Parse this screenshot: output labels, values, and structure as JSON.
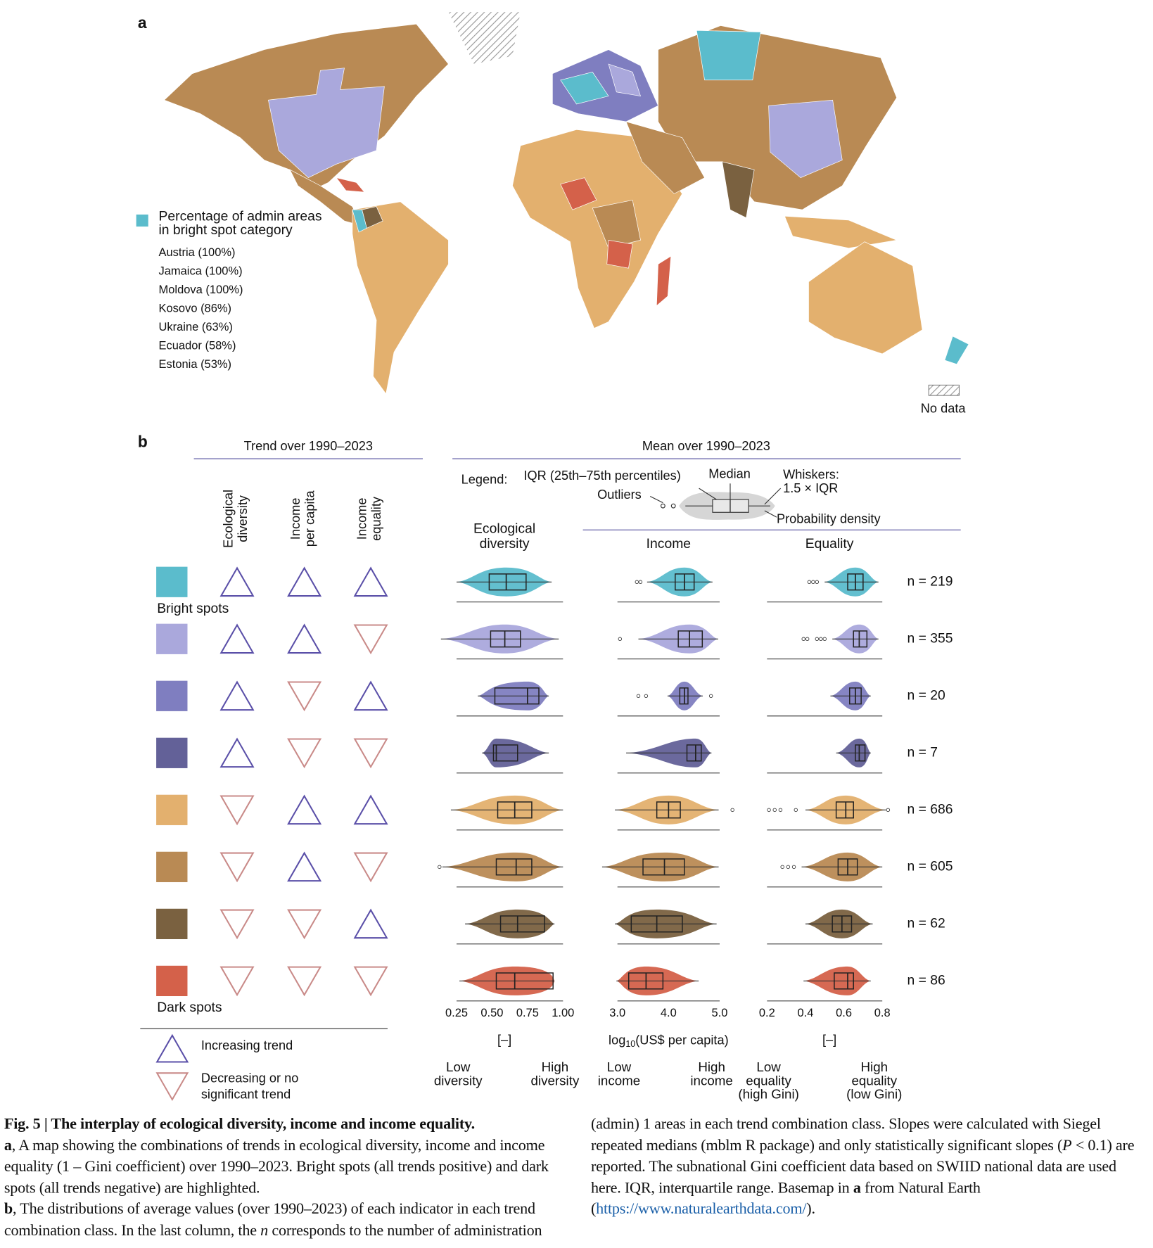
{
  "panel_a": {
    "label": "a",
    "legend_title": [
      "Percentage of admin areas",
      "in bright spot category"
    ],
    "legend_items": [
      "Austria (100%)",
      "Jamaica (100%)",
      "Moldova (100%)",
      "Kosovo (86%)",
      "Ukraine (63%)",
      "Ecuador (58%)",
      "Estonia (53%)"
    ],
    "legend_color": "#5bbccc",
    "no_data": "No data"
  },
  "panel_b": {
    "label": "b",
    "trend_header": "Trend over 1990–2023",
    "mean_header": "Mean over 1990–2023",
    "trend_columns": [
      [
        "Ecological",
        "diversity"
      ],
      [
        "Income",
        "per capita"
      ],
      [
        "Income",
        "equality"
      ]
    ],
    "up_color": "#5a4fa8",
    "down_color": "#c98a88",
    "legend": {
      "title": "Legend:",
      "iqr": "IQR (25th–75th percentiles)",
      "median": "Median",
      "outliers": "Outliers",
      "whiskers": [
        "Whiskers:",
        "1.5 × IQR"
      ],
      "density": "Probability density"
    },
    "trend_legend": {
      "up": "Increasing trend",
      "down": [
        "Decreasing or no",
        "significant trend"
      ]
    },
    "classes": [
      {
        "name": "Bright spots",
        "color": "#5bbccc",
        "trends": [
          "up",
          "up",
          "up"
        ],
        "n": "n = 219"
      },
      {
        "name": null,
        "color": "#aaa8dc",
        "trends": [
          "up",
          "up",
          "down"
        ],
        "n": "n = 355"
      },
      {
        "name": null,
        "color": "#7f7ec0",
        "trends": [
          "up",
          "down",
          "up"
        ],
        "n": "n = 20"
      },
      {
        "name": null,
        "color": "#636198",
        "trends": [
          "up",
          "down",
          "down"
        ],
        "n": "n = 7"
      },
      {
        "name": null,
        "color": "#e3b06e",
        "trends": [
          "down",
          "up",
          "up"
        ],
        "n": "n = 686"
      },
      {
        "name": null,
        "color": "#b98a54",
        "trends": [
          "down",
          "up",
          "down"
        ],
        "n": "n = 605"
      },
      {
        "name": null,
        "color": "#7a6140",
        "trends": [
          "down",
          "down",
          "up"
        ],
        "n": "n = 62"
      },
      {
        "name": "Dark spots",
        "color": "#d4614a",
        "trends": [
          "down",
          "down",
          "down"
        ],
        "n": "n = 86"
      }
    ],
    "charts": [
      {
        "type": "violin",
        "title": [
          "Ecological",
          "diversity"
        ],
        "xlim": [
          0.125,
          1.05
        ],
        "xticks": [
          0.25,
          {
            "value": 0.5,
            "label": "0.50"
          },
          0.75,
          {
            "value": 1.0,
            "label": "1.00"
          }
        ],
        "xlabel": [
          "[–]"
        ],
        "low_label": [
          "Low",
          "diversity"
        ],
        "high_label": [
          "High",
          "diversity"
        ],
        "rows": [
          {
            "whislo": 0.25,
            "q1": 0.48,
            "med": 0.6,
            "q3": 0.74,
            "whishi": 0.92,
            "outliers": []
          },
          {
            "whislo": 0.14,
            "q1": 0.49,
            "med": 0.59,
            "q3": 0.7,
            "whishi": 0.97,
            "outliers": []
          },
          {
            "whislo": 0.4,
            "q1": 0.52,
            "med": 0.75,
            "q3": 0.83,
            "whishi": 0.9,
            "outliers": []
          },
          {
            "whislo": 0.43,
            "q1": 0.51,
            "med": 0.53,
            "q3": 0.68,
            "whishi": 0.9,
            "outliers": []
          },
          {
            "whislo": 0.21,
            "q1": 0.54,
            "med": 0.66,
            "q3": 0.78,
            "whishi": 1.0,
            "outliers": []
          },
          {
            "whislo": 0.15,
            "q1": 0.53,
            "med": 0.67,
            "q3": 0.78,
            "whishi": 1.0,
            "outliers": [
              0.13
            ]
          },
          {
            "whislo": 0.31,
            "q1": 0.56,
            "med": 0.68,
            "q3": 0.87,
            "whishi": 0.94,
            "outliers": []
          },
          {
            "whislo": 0.27,
            "q1": 0.53,
            "med": 0.66,
            "q3": 0.93,
            "whishi": 0.94,
            "outliers": []
          }
        ]
      },
      {
        "type": "violin",
        "title": [
          "Income"
        ],
        "xlim": [
          2.7,
          5.3
        ],
        "xticks": [
          {
            "value": 3,
            "label": "3.0"
          },
          {
            "value": 4,
            "label": "4.0"
          },
          {
            "value": 5,
            "label": "5.0"
          }
        ],
        "xlabel": [
          "log",
          "10",
          "(US$ per capita)"
        ],
        "low_label": [
          "Low",
          "income"
        ],
        "high_label": [
          "High",
          "income"
        ],
        "rows": [
          {
            "whislo": 3.58,
            "q1": 4.13,
            "med": 4.31,
            "q3": 4.5,
            "whishi": 4.86,
            "outliers": [
              3.38,
              3.45
            ]
          },
          {
            "whislo": 3.41,
            "q1": 4.19,
            "med": 4.41,
            "q3": 4.66,
            "whishi": 4.97,
            "outliers": [
              3.05
            ]
          },
          {
            "whislo": 3.98,
            "q1": 4.22,
            "med": 4.31,
            "q3": 4.38,
            "whishi": 4.67,
            "outliers": [
              3.41,
              3.56,
              4.83
            ]
          },
          {
            "whislo": 3.17,
            "q1": 4.36,
            "med": 4.53,
            "q3": 4.64,
            "whishi": 4.84,
            "outliers": []
          },
          {
            "whislo": 2.95,
            "q1": 3.77,
            "med": 4.0,
            "q3": 4.23,
            "whishi": 4.98,
            "outliers": [
              5.25
            ]
          },
          {
            "whislo": 2.7,
            "q1": 3.5,
            "med": 3.92,
            "q3": 4.31,
            "whishi": 4.98,
            "outliers": []
          },
          {
            "whislo": 2.95,
            "q1": 3.27,
            "med": 3.77,
            "q3": 4.27,
            "whishi": 4.94,
            "outliers": []
          },
          {
            "whislo": 2.98,
            "q1": 3.22,
            "med": 3.56,
            "q3": 3.89,
            "whishi": 4.59,
            "outliers": []
          }
        ]
      },
      {
        "type": "violin",
        "title": [
          "Equality"
        ],
        "xlim": [
          0.2,
          0.85
        ],
        "xticks": [
          0.2,
          0.4,
          0.6,
          0.8
        ],
        "xlabel": [
          "[–]"
        ],
        "low_label": [
          "Low",
          "equality",
          "(high Gini)"
        ],
        "high_label": [
          "High",
          "equality",
          "(low Gini)"
        ],
        "rows": [
          {
            "whislo": 0.5,
            "q1": 0.62,
            "med": 0.66,
            "q3": 0.7,
            "whishi": 0.78,
            "outliers": [
              0.42,
              0.44,
              0.46
            ]
          },
          {
            "whislo": 0.54,
            "q1": 0.65,
            "med": 0.68,
            "q3": 0.72,
            "whishi": 0.78,
            "outliers": [
              0.39,
              0.41,
              0.46,
              0.48,
              0.5
            ]
          },
          {
            "whislo": 0.53,
            "q1": 0.63,
            "med": 0.66,
            "q3": 0.69,
            "whishi": 0.74,
            "outliers": []
          },
          {
            "whislo": 0.56,
            "q1": 0.66,
            "med": 0.68,
            "q3": 0.71,
            "whishi": 0.74,
            "outliers": []
          },
          {
            "whislo": 0.4,
            "q1": 0.56,
            "med": 0.61,
            "q3": 0.65,
            "whishi": 0.82,
            "outliers": [
              0.21,
              0.24,
              0.27,
              0.35,
              0.83
            ]
          },
          {
            "whislo": 0.38,
            "q1": 0.57,
            "med": 0.62,
            "q3": 0.67,
            "whishi": 0.8,
            "outliers": [
              0.28,
              0.31,
              0.34
            ]
          },
          {
            "whislo": 0.4,
            "q1": 0.54,
            "med": 0.59,
            "q3": 0.64,
            "whishi": 0.75,
            "outliers": []
          },
          {
            "whislo": 0.39,
            "q1": 0.55,
            "med": 0.62,
            "q3": 0.65,
            "whishi": 0.74,
            "outliers": []
          }
        ]
      }
    ]
  },
  "caption": {
    "title": "Fig. 5 | The interplay of ecological diversity, income and income equality.",
    "parts": [
      {
        "text": "a",
        "style": "bold"
      },
      {
        "text": ", A map showing the combinations of trends in ecological diversity, income and income equality (1 – Gini coefficient) over 1990–2023. Bright spots (all trends positive) and dark spots (all trends negative) are highlighted.",
        "style": "normal"
      },
      {
        "text": "b",
        "style": "bold-break"
      },
      {
        "text": ", The distributions of average values (over 1990–2023) of each indicator in each trend combination class. In the last column, the ",
        "style": "normal"
      },
      {
        "text": "n",
        "style": "italic"
      },
      {
        "text": " corresponds to the number of administration (admin) 1 areas in each trend combination class. Slopes were calculated with Siegel repeated medians (mblm R package) and only statistically significant slopes (",
        "style": "normal"
      },
      {
        "text": "P",
        "style": "italic"
      },
      {
        "text": " < 0.1) are reported. The subnational Gini coefficient data based on SWIID national data are used here. IQR, interquartile range. Basemap in ",
        "style": "normal"
      },
      {
        "text": "a",
        "style": "bold"
      },
      {
        "text": " from Natural Earth (",
        "style": "normal"
      },
      {
        "text": "https://www.naturalearthdata.com/",
        "style": "link"
      },
      {
        "text": ").",
        "style": "normal"
      }
    ]
  }
}
